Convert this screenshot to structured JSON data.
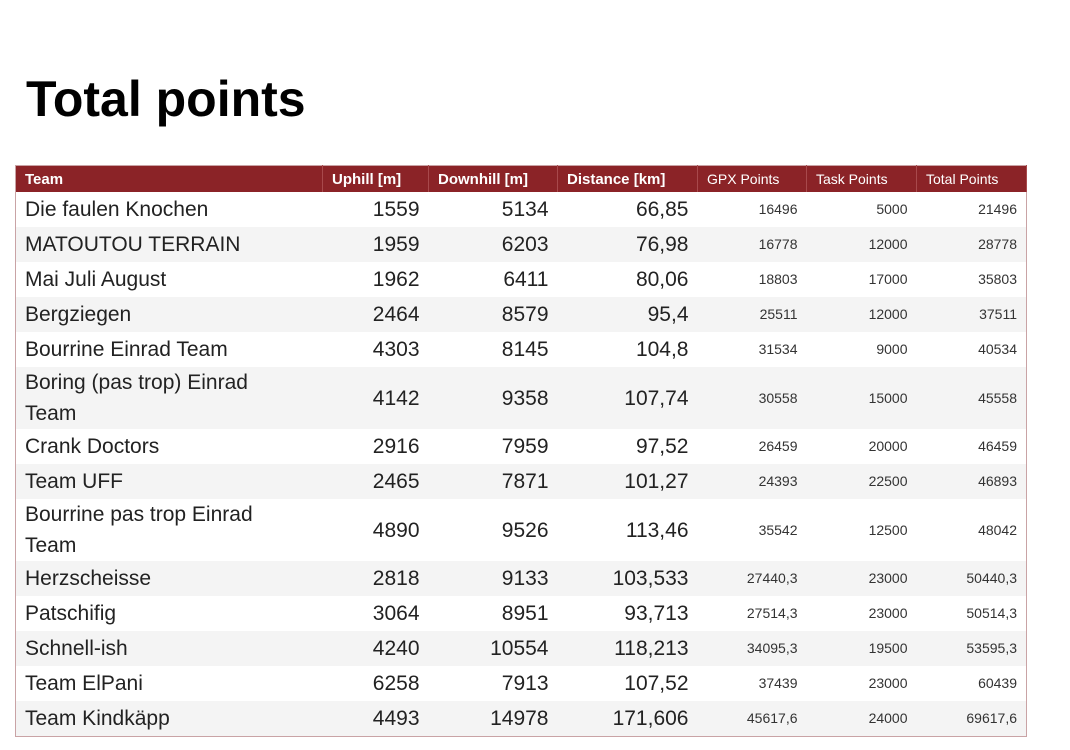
{
  "header": {
    "title": "Total points"
  },
  "table": {
    "columns": [
      "Team",
      "Uphill [m]",
      "Downhill [m]",
      "Distance [km]",
      "GPX Points",
      "Task Points",
      "Total Points"
    ],
    "rows": [
      [
        "Die faulen Knochen",
        "1559",
        "5134",
        "66,85",
        "16496",
        "5000",
        "21496"
      ],
      [
        "MATOUTOU TERRAIN",
        "1959",
        "6203",
        "76,98",
        "16778",
        "12000",
        "28778"
      ],
      [
        "Mai Juli August",
        "1962",
        "6411",
        "80,06",
        "18803",
        "17000",
        "35803"
      ],
      [
        "Bergziegen",
        "2464",
        "8579",
        "95,4",
        "25511",
        "12000",
        "37511"
      ],
      [
        "Bourrine Einrad Team",
        "4303",
        "8145",
        "104,8",
        "31534",
        "9000",
        "40534"
      ],
      [
        "Boring (pas trop) Einrad Team",
        "4142",
        "9358",
        "107,74",
        "30558",
        "15000",
        "45558"
      ],
      [
        "Crank Doctors",
        "2916",
        "7959",
        "97,52",
        "26459",
        "20000",
        "46459"
      ],
      [
        "Team UFF",
        "2465",
        "7871",
        "101,27",
        "24393",
        "22500",
        "46893"
      ],
      [
        "Bourrine pas trop Einrad Team",
        "4890",
        "9526",
        "113,46",
        "35542",
        "12500",
        "48042"
      ],
      [
        "Herzscheisse",
        "2818",
        "9133",
        "103,533",
        "27440,3",
        "23000",
        "50440,3"
      ],
      [
        "Patschifig",
        "3064",
        "8951",
        "93,713",
        "27514,3",
        "23000",
        "50514,3"
      ],
      [
        "Schnell-ish",
        "4240",
        "10554",
        "118,213",
        "34095,3",
        "19500",
        "53595,3"
      ],
      [
        "Team ElPani",
        "6258",
        "7913",
        "107,52",
        "37439",
        "23000",
        "60439"
      ],
      [
        "Team Kindkäpp",
        "4493",
        "14978",
        "171,606",
        "45617,6",
        "24000",
        "69617,6"
      ]
    ]
  }
}
